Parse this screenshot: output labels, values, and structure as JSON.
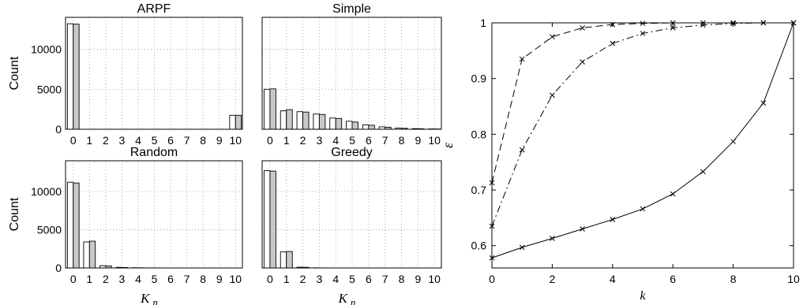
{
  "chart_data": [
    {
      "type": "bar",
      "title": "ARPF",
      "xlabel": "",
      "ylabel": "Count",
      "categories": [
        "0",
        "1",
        "2",
        "3",
        "4",
        "5",
        "6",
        "7",
        "8",
        "9",
        "10"
      ],
      "ylim": [
        0,
        14000
      ],
      "yticks": [
        "0",
        "5000",
        "10000"
      ],
      "grid": true,
      "series": [
        {
          "values": [
            13200,
            0,
            0,
            0,
            0,
            0,
            0,
            0,
            0,
            0,
            1750
          ],
          "color": "#ffffff"
        },
        {
          "values": [
            13150,
            0,
            0,
            0,
            0,
            0,
            0,
            0,
            0,
            0,
            1750
          ],
          "color": "#c8c8c8"
        }
      ]
    },
    {
      "type": "bar",
      "title": "Simple",
      "xlabel": "",
      "ylabel": "",
      "categories": [
        "0",
        "1",
        "2",
        "3",
        "4",
        "5",
        "6",
        "7",
        "8",
        "9",
        "10"
      ],
      "ylim": [
        0,
        14000
      ],
      "yticks": [],
      "grid": true,
      "series": [
        {
          "values": [
            5000,
            2300,
            2200,
            1900,
            1400,
            1000,
            550,
            300,
            150,
            80,
            40
          ],
          "color": "#ffffff"
        },
        {
          "values": [
            5050,
            2450,
            2150,
            1850,
            1350,
            900,
            500,
            250,
            120,
            60,
            30
          ],
          "color": "#c8c8c8"
        }
      ]
    },
    {
      "type": "bar",
      "title": "Random",
      "xlabel": "K_n",
      "ylabel": "Count",
      "categories": [
        "0",
        "1",
        "2",
        "3",
        "4",
        "5",
        "6",
        "7",
        "8",
        "9",
        "10"
      ],
      "ylim": [
        0,
        14000
      ],
      "yticks": [
        "0",
        "5000",
        "10000"
      ],
      "grid": true,
      "series": [
        {
          "values": [
            11200,
            3400,
            300,
            80,
            30,
            10,
            0,
            0,
            0,
            0,
            0
          ],
          "color": "#ffffff"
        },
        {
          "values": [
            11100,
            3500,
            250,
            60,
            20,
            10,
            0,
            0,
            0,
            0,
            0
          ],
          "color": "#c8c8c8"
        }
      ]
    },
    {
      "type": "bar",
      "title": "Greedy",
      "xlabel": "K_n",
      "ylabel": "",
      "categories": [
        "0",
        "1",
        "2",
        "3",
        "4",
        "5",
        "6",
        "7",
        "8",
        "9",
        "10"
      ],
      "ylim": [
        0,
        14000
      ],
      "yticks": [],
      "grid": true,
      "series": [
        {
          "values": [
            12700,
            2100,
            100,
            20,
            0,
            0,
            0,
            0,
            0,
            0,
            0
          ],
          "color": "#ffffff"
        },
        {
          "values": [
            12650,
            2150,
            80,
            10,
            0,
            0,
            0,
            0,
            0,
            0,
            0
          ],
          "color": "#c8c8c8"
        }
      ]
    },
    {
      "type": "line",
      "title": "",
      "xlabel": "k",
      "ylabel": "ε",
      "x": [
        0,
        1,
        2,
        3,
        4,
        5,
        6,
        7,
        8,
        9,
        10
      ],
      "xlim": [
        0,
        10
      ],
      "ylim": [
        0.56,
        1.0
      ],
      "xticks": [
        "0",
        "2",
        "4",
        "6",
        "8",
        "10"
      ],
      "yticks": [
        "0.6",
        "0.7",
        "0.8",
        "0.9",
        "1"
      ],
      "grid": false,
      "series": [
        {
          "style": "dashed",
          "values": [
            0.713,
            0.935,
            0.975,
            0.991,
            0.997,
            0.999,
            1.0,
            1.0,
            1.0,
            1.0,
            1.0
          ]
        },
        {
          "style": "dashdot",
          "values": [
            0.635,
            0.772,
            0.87,
            0.93,
            0.963,
            0.981,
            0.991,
            0.996,
            0.999,
            1.0,
            1.0
          ]
        },
        {
          "style": "solid",
          "values": [
            0.578,
            0.597,
            0.613,
            0.63,
            0.647,
            0.666,
            0.693,
            0.733,
            0.787,
            0.856,
            1.0
          ]
        }
      ],
      "marker": "x"
    }
  ]
}
